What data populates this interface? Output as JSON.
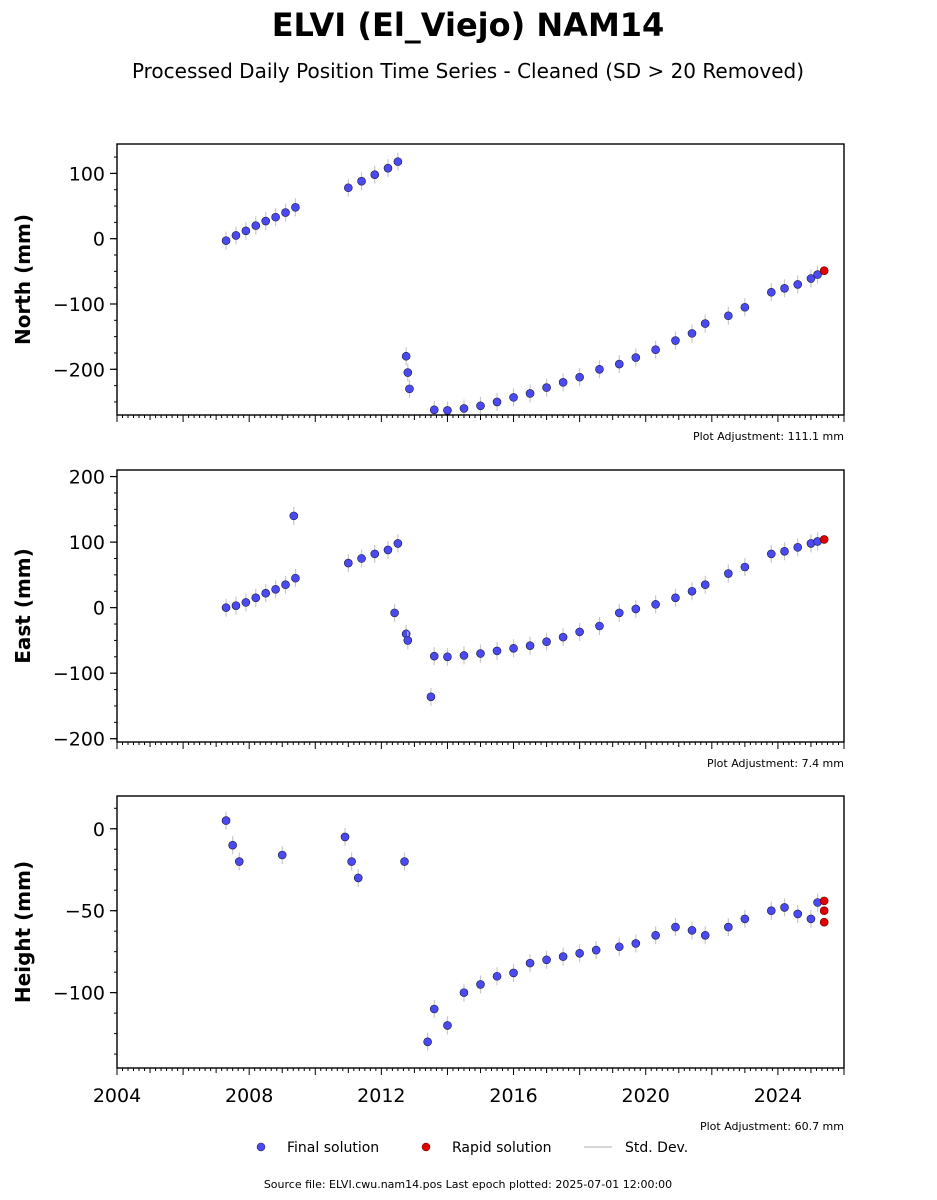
{
  "title": "ELVI (El_Viejo) NAM14",
  "subtitle": "Processed Daily Position Time Series - Cleaned (SD > 20 Removed)",
  "colors": {
    "final": "#4a4af0",
    "final_edge": "#1a1a40",
    "rapid": "#e00000",
    "std_dev": "#c8c8c8"
  },
  "legend": {
    "final_label": "Final solution",
    "rapid_label": "Rapid solution",
    "std_label": "Std. Dev."
  },
  "footer": "Source file: ELVI.cwu.nam14.pos  Last epoch plotted: 2025-07-01 12:00:00",
  "chart_data": [
    {
      "type": "scatter",
      "ylabel": "North (mm)",
      "adjustment": "Plot Adjustment: 111.1 mm",
      "xlim": [
        2004,
        2026
      ],
      "ylim": [
        -270,
        145
      ],
      "yticks": [
        100,
        0,
        -100,
        -200
      ],
      "ytick_labels": [
        "100",
        "0",
        "−100",
        "−200"
      ],
      "series": [
        {
          "role": "final",
          "x": [
            2007.3,
            2007.6,
            2007.9,
            2008.2,
            2008.5,
            2008.8,
            2009.1,
            2009.4,
            2011.0,
            2011.4,
            2011.8,
            2012.2,
            2012.5,
            2012.75,
            2012.8,
            2012.85,
            2013.6,
            2014.0,
            2014.5,
            2015.0,
            2015.5,
            2016.0,
            2016.5,
            2017.0,
            2017.5,
            2018.0,
            2018.6,
            2019.2,
            2019.7,
            2020.3,
            2020.9,
            2021.4,
            2021.8,
            2022.5,
            2023.0,
            2023.8,
            2024.2,
            2024.6,
            2025.0,
            2025.2
          ],
          "y": [
            -3,
            5,
            12,
            20,
            27,
            33,
            40,
            48,
            78,
            88,
            98,
            108,
            118,
            -180,
            -205,
            -230,
            -262,
            -263,
            -260,
            -256,
            -250,
            -243,
            -237,
            -228,
            -220,
            -212,
            -200,
            -192,
            -182,
            -170,
            -156,
            -145,
            -130,
            -118,
            -105,
            -82,
            -76,
            -70,
            -61,
            -55
          ]
        },
        {
          "role": "rapid",
          "x": [
            2025.4
          ],
          "y": [
            -49
          ]
        }
      ]
    },
    {
      "type": "scatter",
      "ylabel": "East (mm)",
      "adjustment": "Plot Adjustment: 7.4 mm",
      "xlim": [
        2004,
        2026
      ],
      "ylim": [
        -205,
        210
      ],
      "yticks": [
        200,
        100,
        0,
        -100,
        -200
      ],
      "ytick_labels": [
        "200",
        "100",
        "0",
        "−100",
        "−200"
      ],
      "series": [
        {
          "role": "final",
          "x": [
            2007.3,
            2007.6,
            2007.9,
            2008.2,
            2008.5,
            2008.8,
            2009.1,
            2009.4,
            2009.35,
            2011.0,
            2011.4,
            2011.8,
            2012.2,
            2012.5,
            2012.4,
            2012.75,
            2012.8,
            2013.5,
            2013.6,
            2014.0,
            2014.5,
            2015.0,
            2015.5,
            2016.0,
            2016.5,
            2017.0,
            2017.5,
            2018.0,
            2018.6,
            2019.2,
            2019.7,
            2020.3,
            2020.9,
            2021.4,
            2021.8,
            2022.5,
            2023.0,
            2023.8,
            2024.2,
            2024.6,
            2025.0,
            2025.2
          ],
          "y": [
            0,
            3,
            8,
            15,
            22,
            28,
            35,
            45,
            140,
            68,
            75,
            82,
            88,
            98,
            -8,
            -40,
            -50,
            -136,
            -74,
            -75,
            -73,
            -70,
            -66,
            -62,
            -58,
            -52,
            -45,
            -37,
            -28,
            -8,
            -2,
            5,
            15,
            25,
            35,
            52,
            62,
            82,
            86,
            92,
            98,
            101
          ]
        },
        {
          "role": "rapid",
          "x": [
            2025.4
          ],
          "y": [
            104
          ]
        }
      ]
    },
    {
      "type": "scatter",
      "ylabel": "Height (mm)",
      "adjustment": "Plot Adjustment: 60.7 mm",
      "xlim": [
        2004,
        2026
      ],
      "ylim": [
        -146,
        20
      ],
      "yticks": [
        0,
        -50,
        -100
      ],
      "ytick_labels": [
        "0",
        "−50",
        "−100"
      ],
      "xticks": [
        2004,
        2008,
        2012,
        2016,
        2020,
        2024
      ],
      "xtick_labels": [
        "2004",
        "2008",
        "2012",
        "2016",
        "2020",
        "2024"
      ],
      "series": [
        {
          "role": "final",
          "x": [
            2007.3,
            2007.5,
            2007.7,
            2009.0,
            2010.9,
            2011.1,
            2011.3,
            2012.7,
            2013.4,
            2013.6,
            2014.0,
            2014.5,
            2015.0,
            2015.5,
            2016.0,
            2016.5,
            2017.0,
            2017.5,
            2018.0,
            2018.5,
            2019.2,
            2019.7,
            2020.3,
            2020.9,
            2021.4,
            2021.8,
            2022.5,
            2023.0,
            2023.8,
            2024.2,
            2024.6,
            2025.0,
            2025.2
          ],
          "y": [
            5,
            -10,
            -20,
            -16,
            -5,
            -20,
            -30,
            -20,
            -130,
            -110,
            -120,
            -100,
            -95,
            -90,
            -88,
            -82,
            -80,
            -78,
            -76,
            -74,
            -72,
            -70,
            -65,
            -60,
            -62,
            -65,
            -60,
            -55,
            -50,
            -48,
            -52,
            -55,
            -45
          ]
        },
        {
          "role": "rapid",
          "x": [
            2025.4,
            2025.4,
            2025.4
          ],
          "y": [
            -44,
            -50,
            -57
          ]
        }
      ]
    }
  ]
}
